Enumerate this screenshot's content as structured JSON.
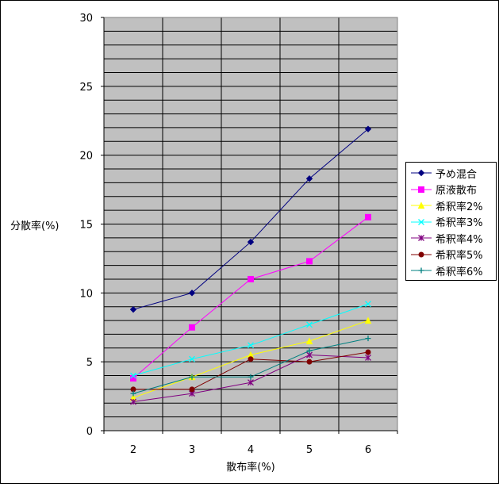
{
  "chart_data": {
    "type": "line",
    "title": "",
    "xlabel": "散布率(%)",
    "ylabel": "分散率(%)",
    "x": [
      2,
      3,
      4,
      5,
      6
    ],
    "ylim": [
      0,
      30
    ],
    "yticks": [
      0,
      5,
      10,
      15,
      20,
      25,
      30
    ],
    "ygrid_step": 1,
    "grid": true,
    "plot_background": "#c0c0c0",
    "legend_position": "right",
    "series": [
      {
        "name": "予め混合",
        "values": [
          8.8,
          10.0,
          13.7,
          18.3,
          21.9
        ],
        "color": "#000080",
        "marker": "diamond"
      },
      {
        "name": "原液散布",
        "values": [
          3.8,
          7.5,
          11.0,
          12.3,
          15.5
        ],
        "color": "#ff00ff",
        "marker": "square"
      },
      {
        "name": "希釈率2%",
        "values": [
          2.4,
          3.9,
          5.5,
          6.5,
          8.0
        ],
        "color": "#ffff00",
        "marker": "triangle"
      },
      {
        "name": "希釈率3%",
        "values": [
          4.0,
          5.2,
          6.2,
          7.7,
          9.2
        ],
        "color": "#00ffff",
        "marker": "x"
      },
      {
        "name": "希釈率4%",
        "values": [
          2.1,
          2.7,
          3.5,
          5.5,
          5.3
        ],
        "color": "#800080",
        "marker": "star"
      },
      {
        "name": "希釈率5%",
        "values": [
          3.0,
          3.0,
          5.2,
          5.0,
          5.7
        ],
        "color": "#800000",
        "marker": "circle"
      },
      {
        "name": "希釈率6%",
        "values": [
          2.7,
          3.9,
          3.9,
          5.8,
          6.7
        ],
        "color": "#008080",
        "marker": "plus"
      }
    ]
  }
}
